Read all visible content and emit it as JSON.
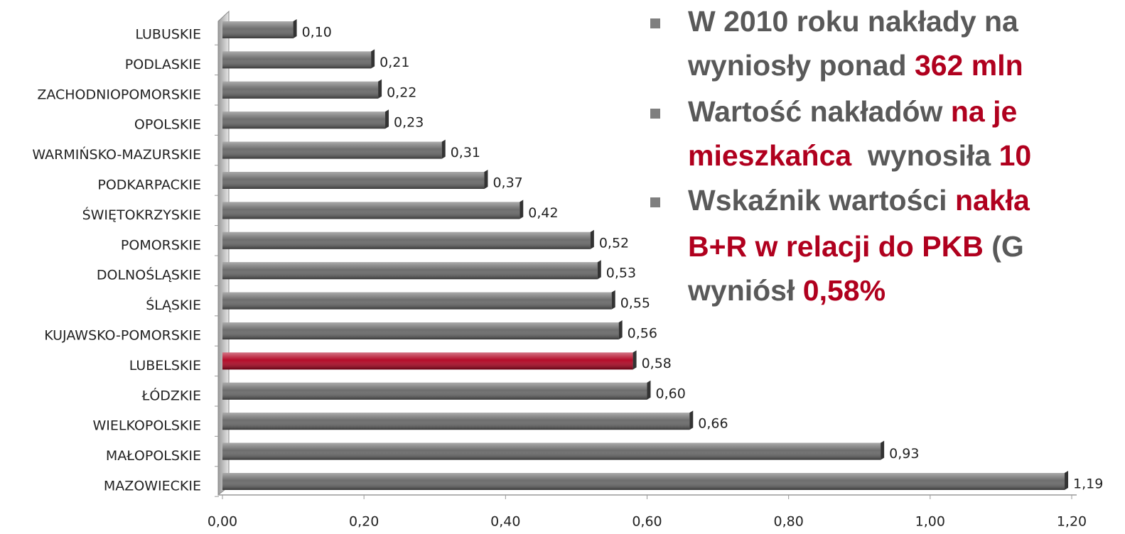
{
  "chart_data": {
    "type": "bar",
    "orientation": "horizontal",
    "categories": [
      "LUBUSKIE",
      "PODLASKIE",
      "ZACHODNIOPOMORSKIE",
      "OPOLSKIE",
      "WARMIŃSKO-MAZURSKIE",
      "PODKARPACKIE",
      "ŚWIĘTOKRZYSKIE",
      "POMORSKIE",
      "DOLNOŚLĄSKIE",
      "ŚLĄSKIE",
      "KUJAWSKO-POMORSKIE",
      "LUBELSKIE",
      "ŁÓDZKIE",
      "WIELKOPOLSKIE",
      "MAŁOPOLSKIE",
      "MAZOWIECKIE"
    ],
    "values": [
      0.1,
      0.21,
      0.22,
      0.23,
      0.31,
      0.37,
      0.42,
      0.52,
      0.53,
      0.55,
      0.56,
      0.58,
      0.6,
      0.66,
      0.93,
      1.19
    ],
    "value_labels": [
      "0,10",
      "0,21",
      "0,22",
      "0,23",
      "0,31",
      "0,37",
      "0,42",
      "0,52",
      "0,53",
      "0,55",
      "0,56",
      "0,58",
      "0,60",
      "0,66",
      "0,93",
      "1,19"
    ],
    "colors": [
      "#666666",
      "#666666",
      "#666666",
      "#666666",
      "#666666",
      "#666666",
      "#666666",
      "#666666",
      "#666666",
      "#666666",
      "#666666",
      "#b0001e",
      "#666666",
      "#666666",
      "#666666",
      "#666666"
    ],
    "xlim": [
      0,
      1.2
    ],
    "xticks": [
      {
        "value": 0,
        "label": "0,00"
      },
      {
        "value": 0.2,
        "label": "0,20"
      },
      {
        "value": 0.4,
        "label": "0,40"
      },
      {
        "value": 0.6,
        "label": "0,60"
      },
      {
        "value": 0.8,
        "label": "0,80"
      },
      {
        "value": 1.0,
        "label": "1,00"
      },
      {
        "value": 1.2,
        "label": "1,20"
      }
    ],
    "grid": false
  },
  "bullets": [
    {
      "lines": [
        [
          {
            "text": "W 2010 roku nakłady na",
            "color": "#595959"
          }
        ],
        [
          {
            "text": "wyniosły ponad ",
            "color": "#595959"
          },
          {
            "text": "362 mln",
            "color": "#b0001e"
          }
        ]
      ]
    },
    {
      "lines": [
        [
          {
            "text": "Wartość nakładów ",
            "color": "#595959"
          },
          {
            "text": "na je",
            "color": "#b0001e"
          }
        ],
        [
          {
            "text": "mieszkańca",
            "color": "#b0001e"
          },
          {
            "text": "  wynosiła ",
            "color": "#595959"
          },
          {
            "text": "10",
            "color": "#b0001e"
          }
        ]
      ]
    },
    {
      "lines": [
        [
          {
            "text": "Wskaźnik wartości ",
            "color": "#595959"
          },
          {
            "text": "nakła",
            "color": "#b0001e"
          }
        ],
        [
          {
            "text": "B+R w relacji do PKB",
            "color": "#b0001e"
          },
          {
            "text": " (G",
            "color": "#595959"
          }
        ],
        [
          {
            "text": "wyniósł ",
            "color": "#595959"
          },
          {
            "text": "0,58%",
            "color": "#b0001e"
          }
        ]
      ]
    }
  ]
}
